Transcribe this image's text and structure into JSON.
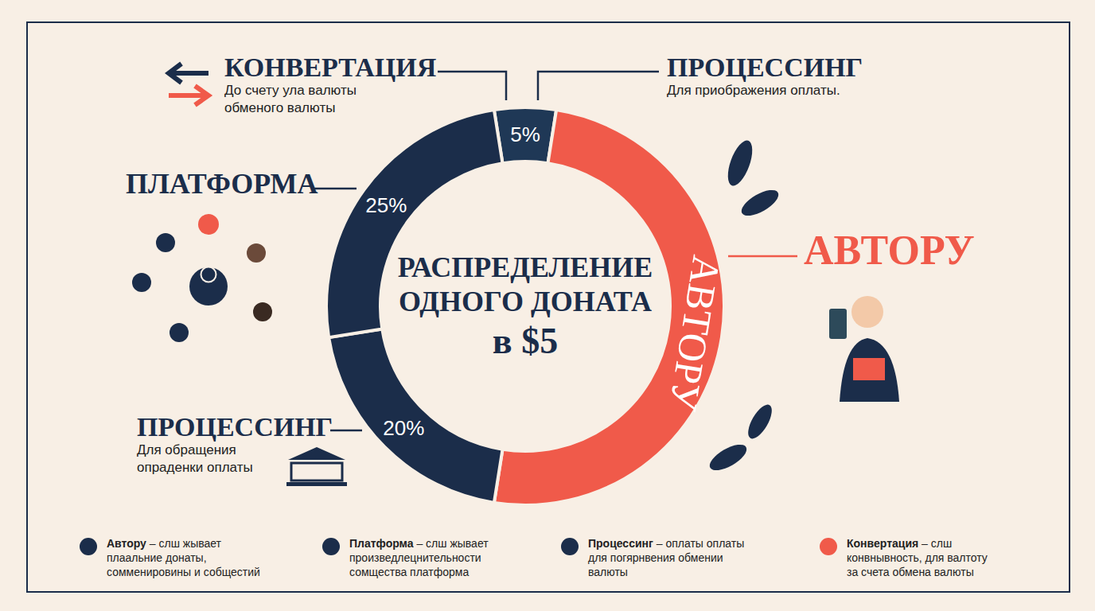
{
  "chart_data": {
    "type": "donut",
    "title": "РАСПРЕДЕЛЕНИЕ ОДНОГО ДОНАТА в $5",
    "categories": [
      "Конвертация",
      "Автору",
      "Процессинг",
      "Платформа"
    ],
    "values": [
      5,
      50,
      20,
      25
    ],
    "value_labels": [
      "5%",
      null,
      "20%",
      "25%"
    ],
    "colors": [
      "#1f3856",
      "#f05a4a",
      "#1b2d4a",
      "#1b2d4a"
    ],
    "data_labels": true,
    "slice_text": {
      "category": "Автору",
      "text": "АВТОРУ"
    },
    "callouts": [
      {
        "title": "КОНВЕРТАЦИЯ",
        "text": [
          "До счету ула валюты",
          "обменого валюты"
        ]
      },
      {
        "title": "ПРОЦЕССИНГ",
        "text": [
          "Для приображения оплаты."
        ]
      },
      {
        "title": "ПЛАТФОРМА",
        "text": []
      },
      {
        "title": "АВТОРУ",
        "text": []
      },
      {
        "title": "ПРОЦЕССИНГ",
        "text": [
          "Для обращения",
          "опраденки оплаты"
        ]
      }
    ],
    "legend": "bottom",
    "legend_entries": [
      {
        "name": "Автору",
        "color": "#1b2d4a",
        "text": [
          "– слш жывает",
          "плаальние донаты,",
          "сомменировины и собщестий"
        ]
      },
      {
        "name": "Платформа",
        "color": "#1b2d4a",
        "text": [
          "– слш жывает",
          "произведлецнительности",
          "сомщества платформа"
        ]
      },
      {
        "name": "Процессинг",
        "color": "#1b2d4a",
        "text": [
          "– оплаты оплаты",
          "для погярнвения обмении",
          "валюты"
        ]
      },
      {
        "name": "Конвертация",
        "color": "#f05a4a",
        "text": [
          "– слш",
          "конвнывность, для валтоту",
          "за счета обмена валюты"
        ]
      }
    ]
  }
}
